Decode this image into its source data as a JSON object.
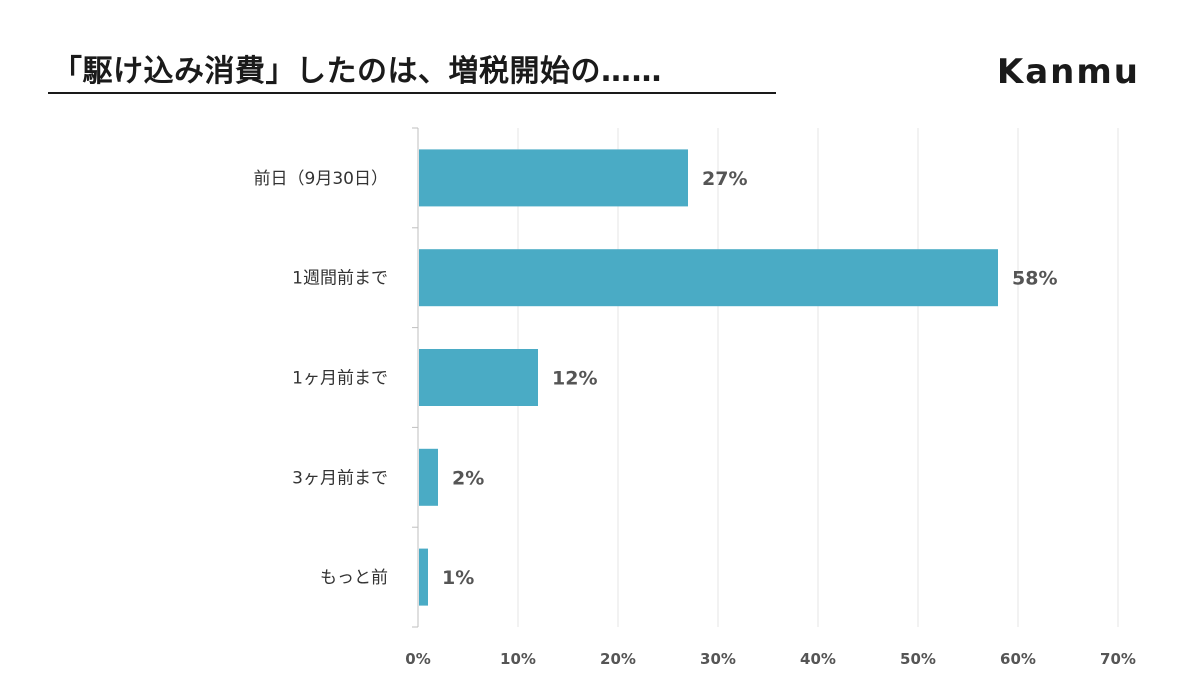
{
  "header": {
    "title": "「駆け込み消費」したのは、増税開始の……",
    "logo": "Kanmu"
  },
  "chart_data": {
    "type": "bar",
    "orientation": "horizontal",
    "categories": [
      "前日（9月30日）",
      "1週間前まで",
      "1ヶ月前まで",
      "3ヶ月前まで",
      "もっと前"
    ],
    "values": [
      27,
      58,
      12,
      2,
      1
    ],
    "value_labels": [
      "27%",
      "58%",
      "12%",
      "2%",
      "1%"
    ],
    "xticks": [
      "0%",
      "10%",
      "20%",
      "30%",
      "40%",
      "50%",
      "60%",
      "70%"
    ],
    "xlim": [
      0,
      70
    ],
    "grid": true,
    "bar_color": "#4aabc5"
  }
}
